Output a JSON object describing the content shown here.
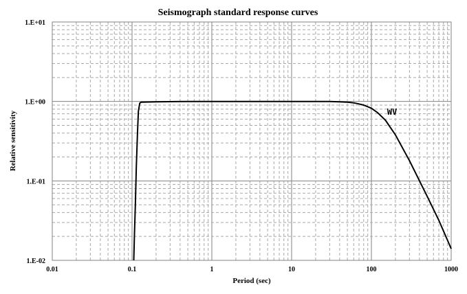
{
  "chart_data": {
    "type": "line",
    "title": "Seismograph standard response curves",
    "xlabel": "Period (sec)",
    "ylabel": "Relative sensitivity",
    "x_scale": "log",
    "y_scale": "log",
    "xlim": [
      0.01,
      1000
    ],
    "ylim": [
      0.01,
      10
    ],
    "grid": true,
    "x_ticks": [
      {
        "value": 0.01,
        "label": "0.01"
      },
      {
        "value": 0.1,
        "label": "0.1"
      },
      {
        "value": 1,
        "label": "1"
      },
      {
        "value": 10,
        "label": "10"
      },
      {
        "value": 100,
        "label": "100"
      },
      {
        "value": 1000,
        "label": "1000"
      }
    ],
    "y_ticks": [
      {
        "value": 0.01,
        "label": "1.E-02"
      },
      {
        "value": 0.1,
        "label": "1.E-01"
      },
      {
        "value": 1,
        "label": "1.E+00"
      },
      {
        "value": 10,
        "label": "1.E+01"
      }
    ],
    "series": [
      {
        "name": "WV",
        "color": "#000000",
        "x": [
          0.105,
          0.107,
          0.11,
          0.113,
          0.117,
          0.12,
          0.125,
          0.13,
          0.2,
          0.5,
          1,
          5,
          10,
          30,
          40,
          50,
          60,
          70,
          80,
          100,
          120,
          150,
          200,
          300,
          500,
          700,
          1000
        ],
        "y": [
          0.01,
          0.02,
          0.05,
          0.15,
          0.4,
          0.75,
          0.95,
          0.98,
          0.99,
          1.0,
          1.0,
          1.0,
          1.0,
          1.0,
          0.99,
          0.98,
          0.96,
          0.93,
          0.9,
          0.82,
          0.72,
          0.58,
          0.38,
          0.18,
          0.064,
          0.032,
          0.014
        ]
      }
    ]
  }
}
